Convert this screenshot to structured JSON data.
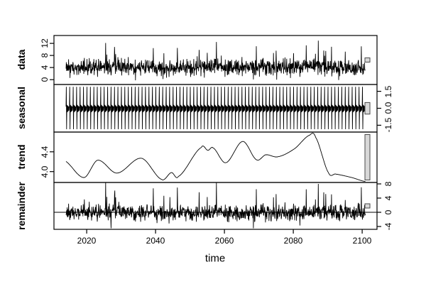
{
  "figure": {
    "background": "#ffffff",
    "line_color": "#000000",
    "scale_bar_fill": "#d8d8d8",
    "scale_bar_stroke": "#4a4a4a",
    "kind": "R stl() decomposition plot, four stacked time-series panels with shared time axis"
  },
  "chart_data": {
    "type": "line",
    "title": "",
    "xlabel": "time",
    "grid": "off",
    "x": {
      "start": 2014.0,
      "points_per_year": 12,
      "n_points": 1044,
      "xlim": [
        2010.5,
        2104.3
      ],
      "tick_labels": [
        "2020",
        "2040",
        "2060",
        "2080",
        "2100"
      ],
      "tick_values": [
        2020,
        2040,
        2060,
        2080,
        2100
      ]
    },
    "panels": [
      {
        "name": "data",
        "axis_side": "left",
        "ylim": [
          -1.6,
          14.6
        ],
        "tick_labels": [
          "0",
          "4",
          "8",
          "12"
        ],
        "tick_values": [
          0,
          4,
          8,
          12
        ],
        "composition": "seasonal + trend + remainder",
        "scale_bar_units": 1.02
      },
      {
        "name": "seasonal",
        "axis_side": "right",
        "ylim": [
          -2.1,
          2.1
        ],
        "tick_labels": [
          "-1.5",
          "0.0",
          "1.5"
        ],
        "tick_values": [
          -1.5,
          0.0,
          1.5
        ],
        "period_years": 1,
        "monthly_pattern": [
          0.15,
          1.9,
          -1.85,
          0.3,
          -0.35,
          0.25,
          -0.3,
          0.2,
          -0.25,
          0.15,
          -0.2,
          0.1
        ],
        "scale_bar_units": 1.02
      },
      {
        "name": "trend",
        "axis_side": "left",
        "ylim": [
          3.78,
          4.8
        ],
        "tick_labels": [
          "4.0",
          "4.4"
        ],
        "tick_values": [
          4.0,
          4.4
        ],
        "control_points": [
          [
            2013.6,
            4.22
          ],
          [
            2019.2,
            3.88
          ],
          [
            2023.2,
            4.23
          ],
          [
            2028.8,
            3.97
          ],
          [
            2035.9,
            4.27
          ],
          [
            2041.8,
            3.84
          ],
          [
            2044.6,
            3.98
          ],
          [
            2046.6,
            3.9
          ],
          [
            2053.3,
            4.49
          ],
          [
            2055.2,
            4.43
          ],
          [
            2056.7,
            4.48
          ],
          [
            2060.4,
            4.18
          ],
          [
            2065.3,
            4.61
          ],
          [
            2069.3,
            4.24
          ],
          [
            2072.0,
            4.34
          ],
          [
            2075.5,
            4.3
          ],
          [
            2080.3,
            4.46
          ],
          [
            2084.8,
            4.74
          ],
          [
            2086.5,
            4.69
          ],
          [
            2090.2,
            3.98
          ],
          [
            2092.3,
            3.95
          ],
          [
            2097.0,
            3.88
          ],
          [
            2100.9,
            3.8
          ]
        ],
        "scale_bar_units": 1.02
      },
      {
        "name": "remainder",
        "axis_side": "right",
        "ylim": [
          -4.8,
          8.4
        ],
        "tick_labels": [
          "-4",
          "0",
          "4",
          "8"
        ],
        "tick_values": [
          -4,
          0,
          4,
          8
        ],
        "zero_line": true,
        "noise_sd": 1.1,
        "spike_prob_pos": 0.022,
        "spike_prob_neg": 0.006,
        "spike_max": 8.3,
        "seed": 1337,
        "scale_bar_units": 1.02
      }
    ],
    "scale_bars": {
      "present": true,
      "note": "gray bars at right edge of each panel show relative data scales"
    }
  }
}
